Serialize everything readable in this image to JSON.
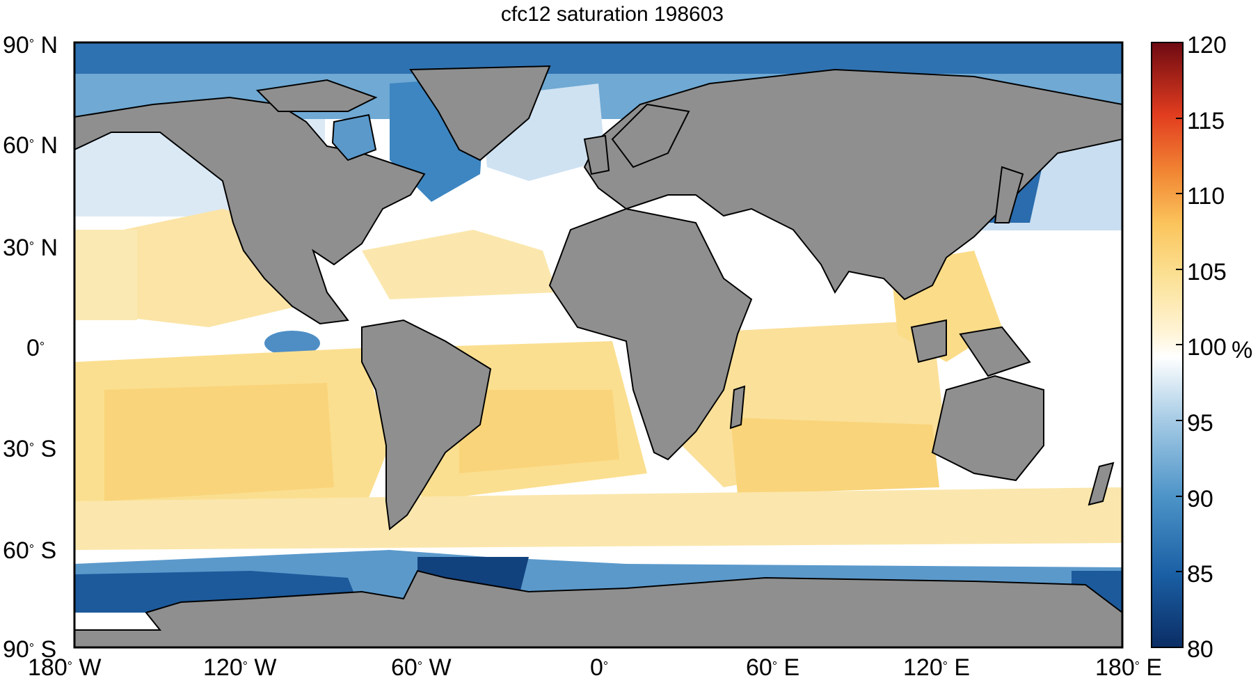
{
  "title": "cfc12 saturation 198603",
  "y_ticks": [
    {
      "label": "90",
      "hemi": "N"
    },
    {
      "label": "60",
      "hemi": "N"
    },
    {
      "label": "30",
      "hemi": "N"
    },
    {
      "label": "0",
      "hemi": ""
    },
    {
      "label": "30",
      "hemi": "S"
    },
    {
      "label": "60",
      "hemi": "S"
    },
    {
      "label": "90",
      "hemi": "S"
    }
  ],
  "x_ticks": [
    {
      "label": "180",
      "hemi": "W"
    },
    {
      "label": "120",
      "hemi": "W"
    },
    {
      "label": "60",
      "hemi": "W"
    },
    {
      "label": "0",
      "hemi": ""
    },
    {
      "label": "60",
      "hemi": "E"
    },
    {
      "label": "120",
      "hemi": "E"
    },
    {
      "label": "180",
      "hemi": "E"
    }
  ],
  "colorbar": {
    "ticks": [
      "120",
      "115",
      "110",
      "105",
      "100",
      "95",
      "90",
      "85",
      "80"
    ],
    "unit": "%",
    "min": 80,
    "max": 120,
    "colors_low_to_high": [
      "#0b2d64",
      "#1a5fa4",
      "#4d94c8",
      "#a9cde6",
      "#ffffff",
      "#fbe7a8",
      "#fbc45c",
      "#f28a35",
      "#e23d1f",
      "#b30f15",
      "#6e0a12"
    ]
  },
  "colors": {
    "land": "#8f8f8f",
    "frame": "#000000"
  }
}
